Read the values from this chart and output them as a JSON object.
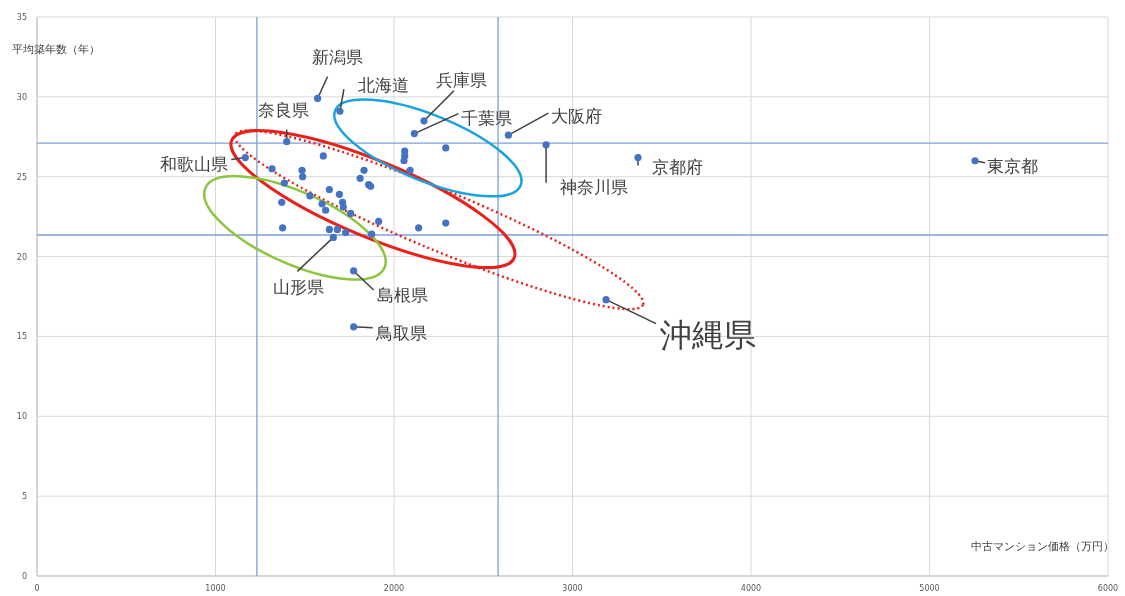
{
  "chart_data": {
    "type": "scatter",
    "xlabel": "中古マンション価格（万円）",
    "ylabel": "平均築年数（年）",
    "x": [
      1572,
      1697,
      2168,
      2114,
      2641,
      1399,
      2290,
      2060,
      2060,
      2056,
      2090,
      1167,
      1604,
      1317,
      1485,
      1488,
      1832,
      1810,
      1858,
      1869,
      1386,
      1638,
      1694,
      1529,
      1712,
      1716,
      1371,
      1597,
      1617,
      1757,
      1914,
      2290,
      2138,
      1376,
      1638,
      1683,
      1729,
      1875,
      1660,
      1774,
      1774,
      2852,
      3367,
      5255,
      3188
    ],
    "values": [
      29.9,
      29.1,
      28.5,
      27.7,
      27.6,
      27.2,
      26.8,
      26.6,
      26.3,
      26.0,
      25.4,
      26.2,
      26.3,
      25.5,
      25.4,
      25.0,
      25.4,
      24.9,
      24.5,
      24.4,
      24.6,
      24.2,
      23.9,
      23.8,
      23.4,
      23.1,
      23.4,
      23.3,
      22.9,
      22.7,
      22.2,
      22.1,
      21.8,
      21.8,
      21.7,
      21.7,
      21.5,
      21.4,
      21.2,
      19.1,
      15.6,
      27.0,
      26.2,
      26.0,
      17.3
    ],
    "color": "#4472c4",
    "marker": "circle",
    "xlim": [
      0,
      6000
    ],
    "ylim": [
      0,
      35
    ],
    "xticks": [
      0,
      1000,
      2000,
      3000,
      4000,
      5000,
      6000
    ],
    "yticks": [
      0,
      5,
      10,
      15,
      20,
      25,
      30,
      35
    ],
    "grid": true,
    "ref_lines": [
      {
        "axis": "x",
        "value": 1232,
        "color": "#7f9fd6"
      },
      {
        "axis": "x",
        "value": 2583,
        "color": "#7f9fd6"
      },
      {
        "axis": "y",
        "value": 27.1,
        "color": "#7f9fd6"
      },
      {
        "axis": "y",
        "value": 21.35,
        "color": "#7f9fd6"
      }
    ],
    "annotations": [
      {
        "text": "新潟県",
        "x": 1572,
        "y": 29.9
      },
      {
        "text": "北海道",
        "x": 1697,
        "y": 29.1
      },
      {
        "text": "兵庫県",
        "x": 2168,
        "y": 28.5
      },
      {
        "text": "千葉県",
        "x": 2114,
        "y": 27.7
      },
      {
        "text": "大阪府",
        "x": 2641,
        "y": 27.6
      },
      {
        "text": "奈良県",
        "x": 1399,
        "y": 27.2
      },
      {
        "text": "和歌山県",
        "x": 1167,
        "y": 26.2
      },
      {
        "text": "神奈川県",
        "x": 2852,
        "y": 27.0
      },
      {
        "text": "京都府",
        "x": 3367,
        "y": 26.2
      },
      {
        "text": "東京都",
        "x": 5255,
        "y": 26.0
      },
      {
        "text": "山形県",
        "x": 1660,
        "y": 21.2
      },
      {
        "text": "島根県",
        "x": 1774,
        "y": 19.1
      },
      {
        "text": "鳥取県",
        "x": 1774,
        "y": 15.6
      },
      {
        "text": "沖縄県",
        "x": 3188,
        "y": 17.3
      }
    ]
  }
}
